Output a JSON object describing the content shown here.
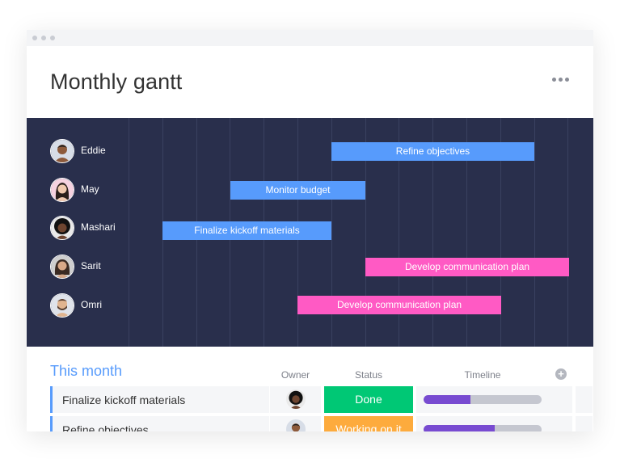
{
  "app": {
    "title": "Monthly gantt"
  },
  "icons": {
    "more": "more-horizontal-icon",
    "add": "plus-circle-icon"
  },
  "colors": {
    "gantt_bg": "#292f4c",
    "blue": "#579bfc",
    "pink": "#ff5ac4",
    "done": "#00c875",
    "working": "#fdab3d",
    "timeline_fill": "#784bd1"
  },
  "gantt": {
    "people": [
      {
        "name": "Eddie",
        "skin": "#8d5a3b",
        "hair": "#1b1b1b",
        "bg": "#d7dde7"
      },
      {
        "name": "May",
        "skin": "#f1c9ae",
        "hair": "#2a1f1a",
        "bg": "#f6d2e0"
      },
      {
        "name": "Mashari",
        "skin": "#6e4530",
        "hair": "#111111",
        "bg": "#eaeaea"
      },
      {
        "name": "Sarit",
        "skin": "#d9a988",
        "hair": "#3b2a22",
        "bg": "#cfcfcf"
      },
      {
        "name": "Omri",
        "skin": "#e0b48f",
        "hair": "#5a4030",
        "bg": "#dfe3ea"
      }
    ],
    "bars": [
      {
        "label": "Refine objectives",
        "color": "#579bfc"
      },
      {
        "label": "Monitor budget",
        "color": "#579bfc"
      },
      {
        "label": "Finalize kickoff materials",
        "color": "#579bfc"
      },
      {
        "label": "Develop communication plan",
        "color": "#ff5ac4"
      },
      {
        "label": "Develop communication plan",
        "color": "#ff5ac4"
      }
    ]
  },
  "table": {
    "group_title": "This month",
    "columns": {
      "owner": "Owner",
      "status": "Status",
      "timeline": "Timeline"
    },
    "rows": [
      {
        "task": "Finalize kickoff materials",
        "status": "Done",
        "status_color": "#00c875",
        "timeline_progress": 0.4,
        "owner_skin": "#6e4530"
      },
      {
        "task": "Refine objectives",
        "status": "Working on it",
        "status_color": "#fdab3d",
        "timeline_progress": 0.6,
        "owner_skin": "#8d5a3b"
      }
    ]
  }
}
